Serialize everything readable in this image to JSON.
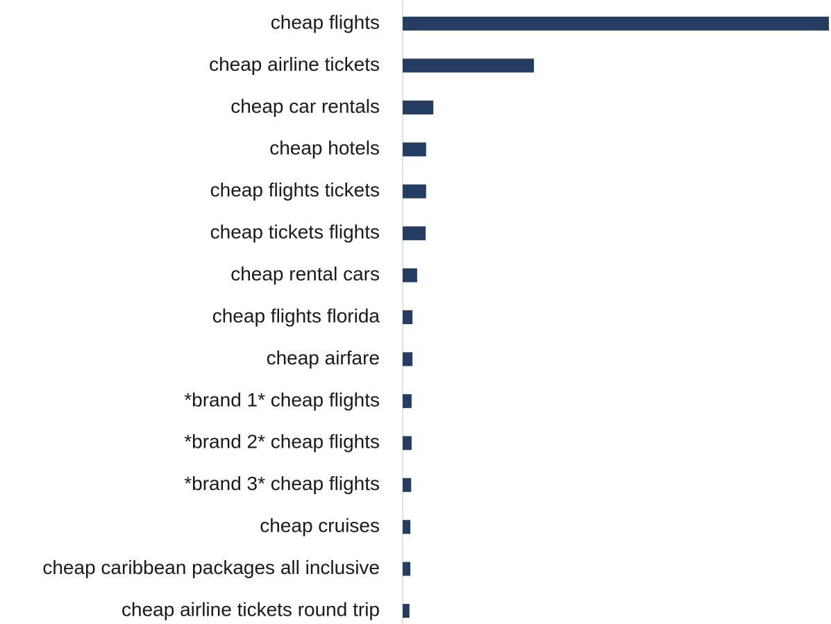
{
  "chart_data": {
    "type": "barh",
    "categories": [
      "cheap flights",
      "cheap airline tickets",
      "cheap car rentals",
      "cheap hotels",
      "cheap flights tickets",
      "cheap tickets flights",
      "cheap rental cars",
      "cheap flights florida",
      "cheap airfare",
      "*brand 1* cheap flights",
      "*brand 2* cheap flights",
      "*brand 3* cheap flights",
      "cheap cruises",
      "cheap caribbean packages all inclusive",
      "cheap airline tickets round trip"
    ],
    "values": [
      100,
      30.8,
      7.2,
      5.5,
      5.5,
      5.4,
      3.4,
      2.3,
      2.3,
      2.1,
      2.1,
      2.0,
      1.8,
      1.8,
      1.6
    ],
    "color": "#253d63",
    "xlim": [
      0,
      100
    ]
  }
}
